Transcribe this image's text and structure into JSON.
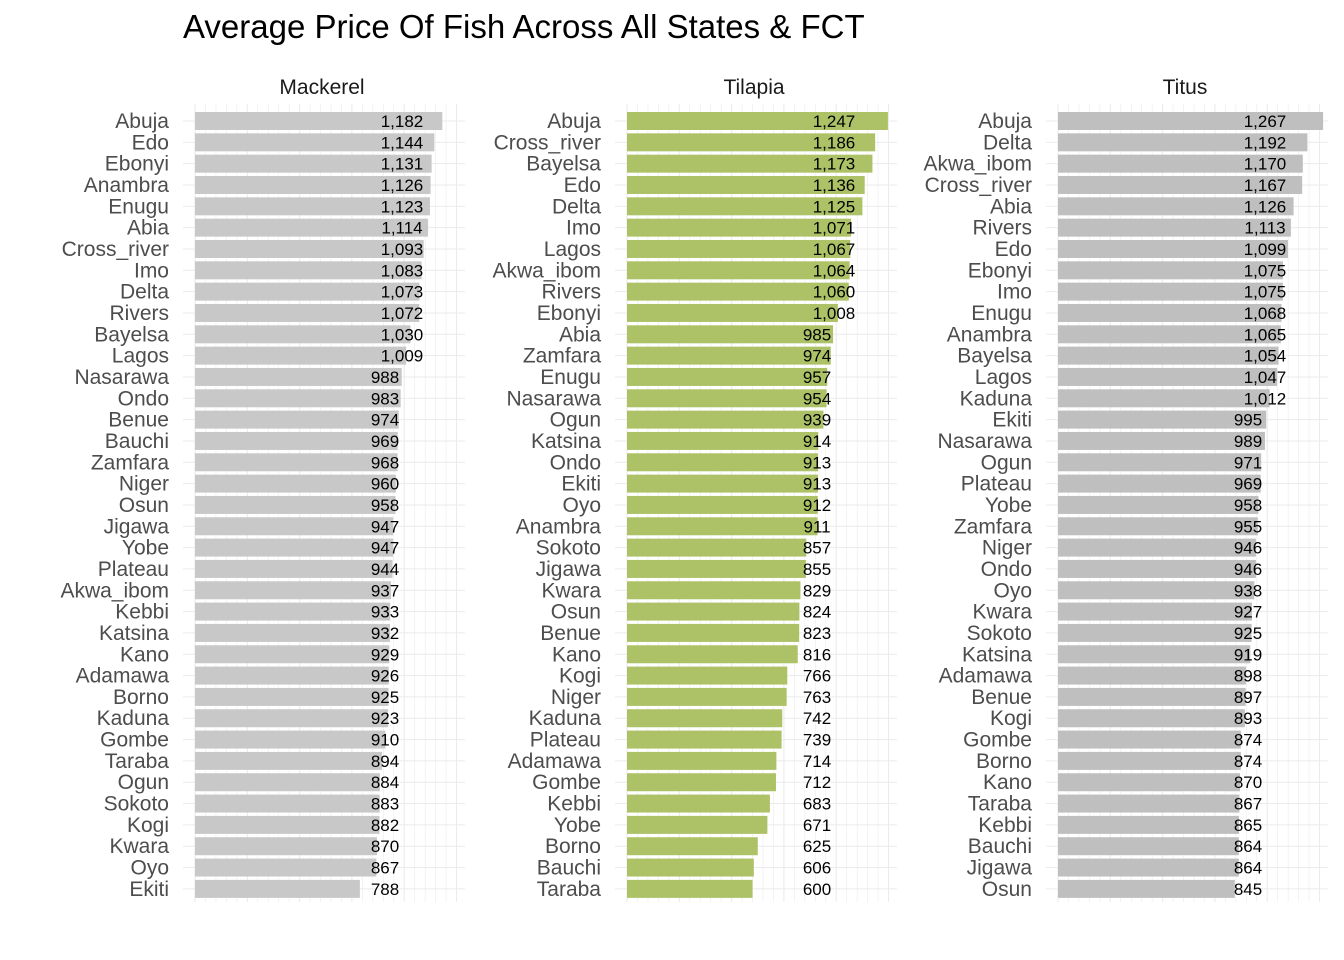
{
  "chart_data": {
    "type": "bar",
    "orientation": "horizontal",
    "title": "Average Price Of Fish Across All States & FCT",
    "xlabel": "",
    "ylabel": "",
    "xlim": [
      0,
      1300
    ],
    "legend": "none",
    "grid": true,
    "colors": {
      "default": "#c8c8c8",
      "highlight": "#adc267",
      "titus": "#bfbfbf",
      "grid": "#ebebeb"
    },
    "facets": [
      {
        "name": "Mackerel",
        "color": "#c8c8c8",
        "categories": [
          "Abuja",
          "Edo",
          "Ebonyi",
          "Anambra",
          "Enugu",
          "Abia",
          "Cross_river",
          "Imo",
          "Delta",
          "Rivers",
          "Bayelsa",
          "Lagos",
          "Nasarawa",
          "Ondo",
          "Benue",
          "Bauchi",
          "Zamfara",
          "Niger",
          "Osun",
          "Jigawa",
          "Yobe",
          "Plateau",
          "Akwa_ibom",
          "Kebbi",
          "Katsina",
          "Kano",
          "Adamawa",
          "Borno",
          "Kaduna",
          "Gombe",
          "Taraba",
          "Ogun",
          "Sokoto",
          "Kogi",
          "Kwara",
          "Oyo",
          "Ekiti"
        ],
        "values": [
          1182,
          1144,
          1131,
          1126,
          1123,
          1114,
          1093,
          1083,
          1073,
          1072,
          1030,
          1009,
          988,
          983,
          974,
          969,
          968,
          960,
          958,
          947,
          947,
          944,
          937,
          933,
          932,
          929,
          926,
          925,
          923,
          910,
          894,
          884,
          883,
          882,
          870,
          867,
          788
        ],
        "labels": [
          "1,182",
          "1,144",
          "1,131",
          "1,126",
          "1,123",
          "1,114",
          "1,093",
          "1,083",
          "1,073",
          "1,072",
          "1,030",
          "1,009",
          "988",
          "983",
          "974",
          "969",
          "968",
          "960",
          "958",
          "947",
          "947",
          "944",
          "937",
          "933",
          "932",
          "929",
          "926",
          "925",
          "923",
          "910",
          "894",
          "884",
          "883",
          "882",
          "870",
          "867",
          "788"
        ]
      },
      {
        "name": "Tilapia",
        "color": "#adc267",
        "categories": [
          "Abuja",
          "Cross_river",
          "Bayelsa",
          "Edo",
          "Delta",
          "Imo",
          "Lagos",
          "Akwa_ibom",
          "Rivers",
          "Ebonyi",
          "Abia",
          "Zamfara",
          "Enugu",
          "Nasarawa",
          "Ogun",
          "Katsina",
          "Ondo",
          "Ekiti",
          "Oyo",
          "Anambra",
          "Sokoto",
          "Jigawa",
          "Kwara",
          "Osun",
          "Benue",
          "Kano",
          "Kogi",
          "Niger",
          "Kaduna",
          "Plateau",
          "Adamawa",
          "Gombe",
          "Kebbi",
          "Yobe",
          "Borno",
          "Bauchi",
          "Taraba"
        ],
        "values": [
          1247,
          1186,
          1173,
          1136,
          1125,
          1071,
          1067,
          1064,
          1060,
          1008,
          985,
          974,
          957,
          954,
          939,
          914,
          913,
          913,
          912,
          911,
          857,
          855,
          829,
          824,
          823,
          816,
          766,
          763,
          742,
          739,
          714,
          712,
          683,
          671,
          625,
          606,
          600
        ],
        "labels": [
          "1,247",
          "1,186",
          "1,173",
          "1,136",
          "1,125",
          "1,071",
          "1,067",
          "1,064",
          "1,060",
          "1,008",
          "985",
          "974",
          "957",
          "954",
          "939",
          "914",
          "913",
          "913",
          "912",
          "911",
          "857",
          "855",
          "829",
          "824",
          "823",
          "816",
          "766",
          "763",
          "742",
          "739",
          "714",
          "712",
          "683",
          "671",
          "625",
          "606",
          "600"
        ]
      },
      {
        "name": "Titus",
        "color": "#bfbfbf",
        "categories": [
          "Abuja",
          "Delta",
          "Akwa_ibom",
          "Cross_river",
          "Abia",
          "Rivers",
          "Edo",
          "Ebonyi",
          "Imo",
          "Enugu",
          "Anambra",
          "Bayelsa",
          "Lagos",
          "Kaduna",
          "Ekiti",
          "Nasarawa",
          "Ogun",
          "Plateau",
          "Yobe",
          "Zamfara",
          "Niger",
          "Ondo",
          "Oyo",
          "Kwara",
          "Sokoto",
          "Katsina",
          "Adamawa",
          "Benue",
          "Kogi",
          "Gombe",
          "Borno",
          "Kano",
          "Taraba",
          "Kebbi",
          "Bauchi",
          "Jigawa",
          "Osun"
        ],
        "values": [
          1267,
          1192,
          1170,
          1167,
          1126,
          1113,
          1099,
          1075,
          1075,
          1068,
          1065,
          1054,
          1047,
          1012,
          995,
          989,
          971,
          969,
          958,
          955,
          946,
          946,
          938,
          927,
          925,
          919,
          898,
          897,
          893,
          874,
          874,
          870,
          867,
          865,
          864,
          864,
          845
        ],
        "labels": [
          "1,267",
          "1,192",
          "1,170",
          "1,167",
          "1,126",
          "1,113",
          "1,099",
          "1,075",
          "1,075",
          "1,068",
          "1,065",
          "1,054",
          "1,047",
          "1,012",
          "995",
          "989",
          "971",
          "969",
          "958",
          "955",
          "946",
          "946",
          "938",
          "927",
          "925",
          "919",
          "898",
          "897",
          "893",
          "874",
          "874",
          "870",
          "867",
          "865",
          "864",
          "864",
          "845"
        ]
      }
    ]
  }
}
